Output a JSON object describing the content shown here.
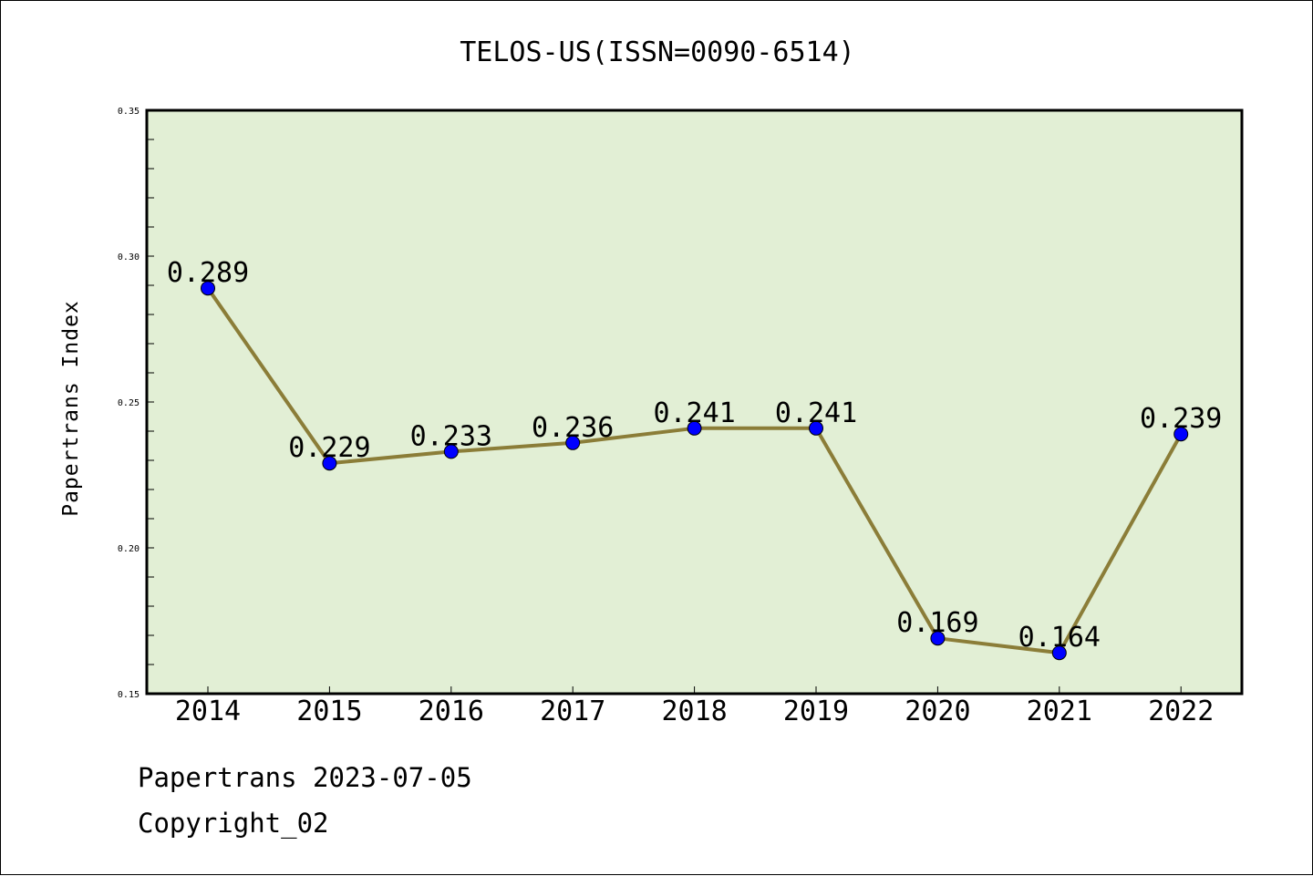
{
  "chart_data": {
    "type": "line",
    "title": "TELOS-US(ISSN=0090-6514)",
    "ylabel": "Papertrans Index",
    "xlabel": "",
    "categories": [
      "2014",
      "2015",
      "2016",
      "2017",
      "2018",
      "2019",
      "2020",
      "2021",
      "2022"
    ],
    "values": [
      0.289,
      0.229,
      0.233,
      0.236,
      0.241,
      0.241,
      0.169,
      0.164,
      0.239
    ],
    "data_labels": [
      "0.289",
      "0.229",
      "0.233",
      "0.236",
      "0.241",
      "0.241",
      "0.169",
      "0.164",
      "0.239"
    ],
    "ylim": [
      0.15,
      0.35
    ],
    "y_ticks": [
      "0.15",
      "0.20",
      "0.25",
      "0.30",
      "0.35"
    ],
    "grid": false,
    "colors": {
      "plot_background": "#e2efd5",
      "line": "#8b7d38",
      "marker": "#0000ff"
    }
  },
  "footer": {
    "date_text": "Papertrans 2023-07-05",
    "copyright_text": "Copyright_02"
  }
}
